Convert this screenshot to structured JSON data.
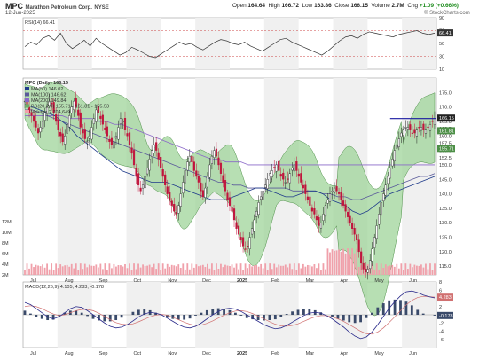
{
  "header": {
    "ticker": "MPC",
    "company": "Marathon Petroleum Corp.",
    "exchange": "NYSE",
    "date": "12-Jun-2025",
    "ohlc": {
      "open_label": "Open",
      "open": "164.64",
      "high_label": "High",
      "high": "166.72",
      "low_label": "Low",
      "low": "163.86",
      "close_label": "Close",
      "close": "166.15",
      "volume_label": "Volume",
      "volume": "2.7M",
      "chg_label": "Chg",
      "chg": "+1.09 (+0.66%)"
    },
    "watermark": "© StockCharts.com"
  },
  "colors": {
    "bb_fill": "#9fd49a",
    "ma50": "#1f3a8a",
    "ma100": "#5a5a9a",
    "ma200": "#8a68c8",
    "up": "#222222",
    "down": "#c0143c",
    "volume": "#f0a0aa",
    "resistance": "#1a1aa0",
    "macd_hist": "#3a4a6a"
  },
  "chart_data": [
    {
      "type": "line",
      "title": "RSI(14) 66.41",
      "x_labels": [
        "Jul",
        "Aug",
        "Sep",
        "Oct",
        "Nov",
        "Dec",
        "2025",
        "Feb",
        "Mar",
        "Apr",
        "May",
        "Jun"
      ],
      "ylim": [
        10,
        90
      ],
      "y_ticks": [
        90,
        70,
        50,
        30,
        10
      ],
      "reference_lines": [
        70,
        30
      ],
      "current_value": 66.41,
      "values": [
        45,
        52,
        48,
        58,
        62,
        55,
        66,
        50,
        42,
        48,
        55,
        46,
        58,
        50,
        44,
        38,
        32,
        36,
        44,
        40,
        35,
        30,
        28,
        34,
        40,
        46,
        52,
        48,
        50,
        44,
        40,
        46,
        52,
        56,
        54,
        50,
        48,
        52,
        46,
        42,
        38,
        44,
        50,
        56,
        58,
        52,
        48,
        44,
        40,
        36,
        32,
        38,
        46,
        54,
        60,
        62,
        58,
        64,
        68,
        66,
        64,
        62,
        60,
        64,
        66,
        68,
        70,
        66,
        64,
        66
      ]
    },
    {
      "type": "candlestick",
      "title": "MPC (Daily) 166.15",
      "legend": [
        {
          "name": "MA(50) 146.02",
          "color": "#1f3a8a"
        },
        {
          "name": "MA(100) 146.62",
          "color": "#5a5a9a"
        },
        {
          "name": "MA(200) 149.84",
          "color": "#8a68c8"
        },
        {
          "name": "BB(20,2.0) 155.71 - 161.81 - 155.53",
          "color": "#6fae69"
        },
        {
          "name": "Volume 2,704,649",
          "color": "#f0a0aa"
        }
      ],
      "x_labels": [
        "Jul",
        "Aug",
        "Sep",
        "Oct",
        "Nov",
        "Dec",
        "2025",
        "Feb",
        "Mar",
        "Apr",
        "May",
        "Jun"
      ],
      "ylim": [
        112,
        180
      ],
      "y_ticks": [
        175.0,
        170.0,
        165.0,
        162.5,
        160.0,
        157.5,
        155.0,
        152.5,
        150.0,
        145.0,
        140.0,
        135.0,
        130.0,
        125.0,
        120.0,
        115.0
      ],
      "price_tags": [
        "166.15",
        "161.81",
        "155.71"
      ],
      "volume_ticks": [
        "12M",
        "10M",
        "8M",
        "6M",
        "4M",
        "2M"
      ],
      "resistance": 166.0,
      "close": [
        172,
        170,
        168,
        167,
        165,
        163,
        161,
        163,
        165,
        168,
        170,
        172,
        171,
        168,
        165,
        162,
        160,
        158,
        160,
        164,
        167,
        170,
        172,
        170,
        167,
        163,
        161,
        159,
        158,
        160,
        163,
        166,
        169,
        168,
        166,
        164,
        162,
        160,
        158,
        157,
        158,
        160,
        163,
        166,
        165,
        162,
        160,
        157,
        154,
        150,
        146,
        143,
        141,
        143,
        146,
        149,
        152,
        155,
        157,
        155,
        152,
        149,
        146,
        143,
        140,
        138,
        136,
        134,
        133,
        136,
        140,
        144,
        148,
        151,
        153,
        151,
        148,
        146,
        144,
        141,
        139,
        142,
        146,
        150,
        153,
        155,
        153,
        150,
        147,
        144,
        141,
        138,
        136,
        134,
        131,
        128,
        126,
        124,
        122,
        121,
        122,
        125,
        128,
        131,
        134,
        137,
        139,
        141,
        143,
        145,
        147,
        148,
        149,
        150,
        148,
        146,
        145,
        144,
        145,
        147,
        149,
        150,
        148,
        146,
        144,
        142,
        140,
        138,
        136,
        134,
        133,
        131,
        129,
        130,
        133,
        136,
        138,
        140,
        141,
        142,
        141,
        140,
        138,
        136,
        134,
        132,
        130,
        128,
        126,
        124,
        120,
        116,
        114,
        113,
        114,
        117,
        121,
        125,
        129,
        133,
        137,
        140,
        143,
        146,
        149,
        152,
        155,
        157,
        159,
        161,
        162,
        163,
        163,
        162,
        161,
        161,
        162,
        163,
        163,
        162,
        162,
        163,
        164,
        165,
        166
      ],
      "ma50": [
        171,
        170,
        169,
        168,
        167,
        165,
        163,
        160,
        158,
        156,
        154,
        152,
        150,
        148,
        147,
        146,
        145,
        144,
        144,
        144,
        143,
        142,
        141,
        140,
        139,
        138,
        138,
        138,
        139,
        140,
        141,
        142,
        142,
        141,
        140,
        139,
        139,
        140,
        141,
        141,
        140,
        138,
        137,
        136,
        134,
        133,
        134,
        136,
        138,
        140,
        141,
        142,
        143,
        144,
        145,
        146
      ],
      "ma100": [
        169,
        169,
        168,
        167,
        166,
        165,
        164,
        163,
        162,
        161,
        160,
        159,
        158,
        157,
        156,
        155,
        154,
        153,
        152,
        151,
        150,
        149,
        148,
        147,
        146,
        145,
        144,
        144,
        143,
        143,
        142,
        142,
        142,
        142,
        142,
        142,
        141,
        141,
        141,
        141,
        140,
        140,
        139,
        139,
        138,
        138,
        139,
        140,
        141,
        142,
        143,
        144,
        145,
        146,
        146,
        147
      ],
      "ma200": [
        167,
        167,
        167,
        167,
        167,
        167,
        166,
        166,
        166,
        166,
        165,
        165,
        164,
        164,
        163,
        162,
        161,
        160,
        159,
        158,
        157,
        156,
        155,
        154,
        153,
        152,
        152,
        151,
        151,
        151,
        150,
        150,
        150,
        150,
        150,
        150,
        150,
        150,
        150,
        150,
        150,
        150,
        150,
        150,
        150,
        150,
        150,
        150,
        150,
        150,
        150,
        150,
        150,
        150,
        150,
        150
      ]
    },
    {
      "type": "line",
      "title": "MACD(12,26,9) 4.105, 4.283, -0.178",
      "x_labels": [
        "Jul",
        "Aug",
        "Sep",
        "Oct",
        "Nov",
        "Dec",
        "2025",
        "Feb",
        "Mar",
        "Apr",
        "May",
        "Jun"
      ],
      "ylim": [
        -8,
        8
      ],
      "y_ticks": [
        8,
        6,
        4,
        2,
        0,
        -2,
        -4,
        -6
      ],
      "price_tags": [
        "4.105",
        "4.283",
        "-0.178"
      ],
      "series": [
        {
          "name": "MACD",
          "values": [
            3,
            2.5,
            1.5,
            0.5,
            -0.5,
            -1,
            -0.5,
            0.5,
            1.5,
            2,
            1.8,
            1,
            0,
            -1,
            -2,
            -2.8,
            -3.2,
            -3,
            -2.4,
            -1.5,
            -0.5,
            0.2,
            0.6,
            0.4,
            0,
            -0.8,
            -1.6,
            -2.4,
            -3,
            -3.2,
            -2.8,
            -2,
            -1,
            0,
            0.8,
            1.4,
            1.6,
            1.4,
            0.8,
            0,
            -0.8,
            -1.6,
            -2.4,
            -3,
            -3.4,
            -3.2,
            -2.6,
            -1.8,
            -1,
            -0.2,
            0.4,
            0.6,
            0.4,
            -0.2,
            -1,
            -2,
            -3,
            -4.2,
            -5.2,
            -5.8,
            -5.4,
            -4.2,
            -2.4,
            -0.4,
            1.6,
            3.2,
            4.6,
            5.6,
            5.8,
            5.4,
            4.8,
            4.4,
            4.1
          ]
        },
        {
          "name": "Signal",
          "values": [
            2,
            2.2,
            2,
            1.5,
            0.8,
            0.2,
            -0.2,
            0,
            0.5,
            1,
            1.3,
            1.3,
            1,
            0.4,
            -0.4,
            -1.2,
            -1.9,
            -2.3,
            -2.4,
            -2.2,
            -1.7,
            -1.1,
            -0.5,
            -0.1,
            0.1,
            -0.1,
            -0.6,
            -1.2,
            -1.8,
            -2.3,
            -2.6,
            -2.5,
            -2.1,
            -1.5,
            -0.8,
            -0.1,
            0.5,
            0.9,
            1,
            0.8,
            0.3,
            -0.3,
            -1,
            -1.7,
            -2.3,
            -2.7,
            -2.8,
            -2.6,
            -2.2,
            -1.6,
            -1,
            -0.5,
            -0.2,
            -0.2,
            -0.5,
            -1,
            -1.6,
            -2.4,
            -3.2,
            -4,
            -4.6,
            -4.7,
            -4.2,
            -3.2,
            -1.9,
            -0.5,
            1,
            2.4,
            3.5,
            4.2,
            4.5,
            4.4,
            4.3
          ]
        }
      ]
    }
  ]
}
